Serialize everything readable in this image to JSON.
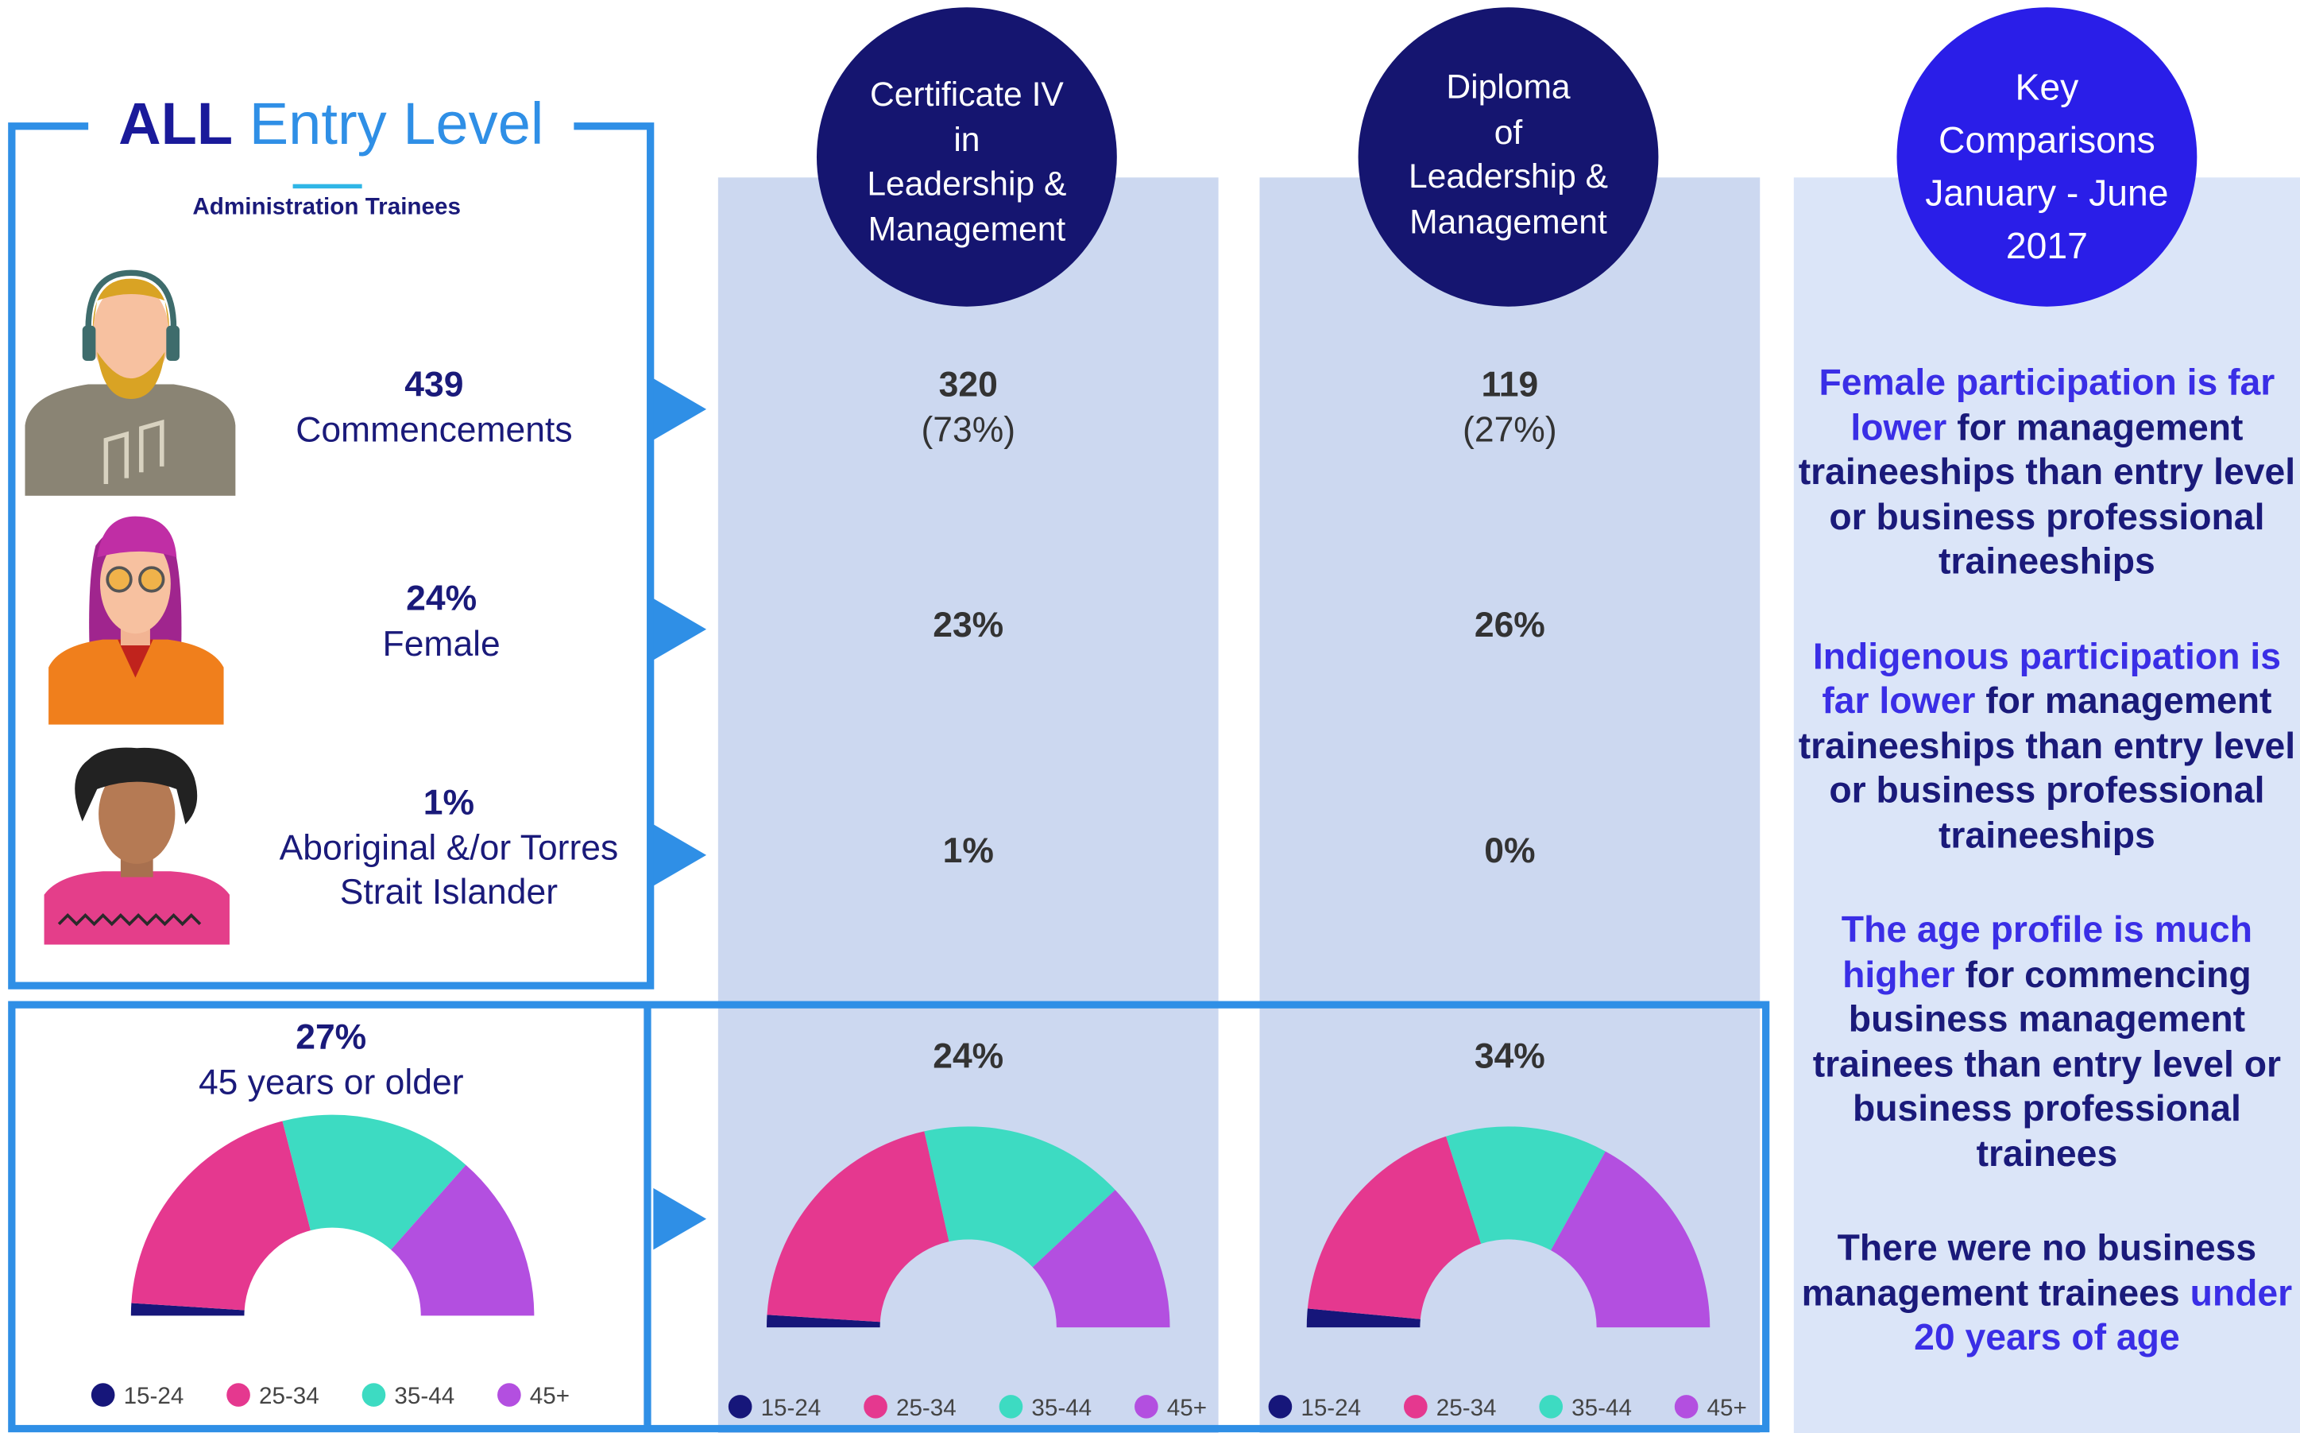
{
  "header": {
    "title_bold": "ALL",
    "title": "Entry Level",
    "subtitle": "Administration Trainees"
  },
  "columns": [
    {
      "lines": [
        "Certificate IV",
        "in",
        "Leadership &",
        "Management"
      ]
    },
    {
      "lines": [
        "Diploma",
        "of",
        "Leadership &",
        "Management"
      ]
    }
  ],
  "key": {
    "title_lines": [
      "Key",
      "Comparisons",
      "January - June",
      "2017"
    ],
    "paragraphs": [
      [
        {
          "text": "Female participation is far lower",
          "color": "#3a2ee6"
        },
        {
          "text": "for management traineeships than entry level or business professional traineeships",
          "color": "#1a1a7a"
        }
      ],
      [
        {
          "text": "Indigenous participation is far lower",
          "color": "#3a2ee6"
        },
        {
          "text": "for management traineeships than entry level or business professional traineeships",
          "color": "#1a1a7a"
        }
      ],
      [
        {
          "text": "The age profile is much higher",
          "color": "#3a2ee6"
        },
        {
          "text": "for commencing business management trainees than entry level or business professional trainees",
          "color": "#1a1a7a"
        }
      ],
      [
        {
          "text": "There were no business management trainees",
          "color": "#1a1a7a"
        },
        {
          "text": "under 20 years of age",
          "color": "#3a2ee6"
        }
      ]
    ]
  },
  "rows": [
    {
      "value": "439",
      "label": "Commencements",
      "cert": "320",
      "cert_share": "(73%)",
      "diploma": "119",
      "diploma_share": "(27%)"
    },
    {
      "value": "24%",
      "label": "Female",
      "cert": "23%",
      "diploma": "26%"
    },
    {
      "value": "1%",
      "label": "Aboriginal &/or Torres Strait Islander",
      "cert": "1%",
      "diploma": "0%"
    }
  ],
  "age_row": {
    "value": "27%",
    "label": "45 years or older",
    "cert": "24%",
    "diploma": "34%"
  },
  "chart_data": [
    {
      "type": "donut",
      "categories": [
        "15-24",
        "25-34",
        "35-44",
        "45+"
      ],
      "values": [
        2,
        40,
        31,
        27
      ],
      "colors": [
        "#16167a",
        "#e5388f",
        "#3ddbc2",
        "#b34fe0"
      ]
    },
    {
      "type": "donut",
      "categories": [
        "15-24",
        "25-34",
        "35-44",
        "45+"
      ],
      "values": [
        2,
        41,
        33,
        24
      ],
      "colors": [
        "#16167a",
        "#e5388f",
        "#3ddbc2",
        "#b34fe0"
      ]
    },
    {
      "type": "donut",
      "categories": [
        "15-24",
        "25-34",
        "35-44",
        "45+"
      ],
      "values": [
        3,
        37,
        26,
        34
      ],
      "colors": [
        "#16167a",
        "#e5388f",
        "#3ddbc2",
        "#b34fe0"
      ]
    }
  ]
}
